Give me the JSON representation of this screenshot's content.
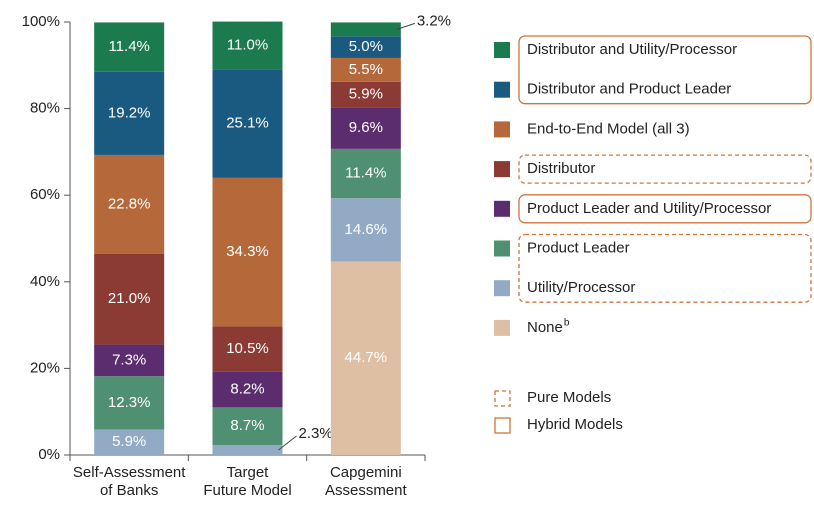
{
  "chart_data": {
    "type": "stacked_bar",
    "categories": [
      "Self-Assessment\nof Banks",
      "Target\nFuture Model",
      "Capgemini\nAssessment"
    ],
    "ylim": [
      0,
      100
    ],
    "yticks": [
      {
        "value": 0,
        "label": "0%"
      },
      {
        "value": 20,
        "label": "20%"
      },
      {
        "value": 40,
        "label": "40%"
      },
      {
        "value": 60,
        "label": "60%"
      },
      {
        "value": 80,
        "label": "80%"
      },
      {
        "value": 100,
        "label": "100%"
      }
    ],
    "series": [
      {
        "name": "Distributor and Utility/Processor",
        "color": "#1b7a4e",
        "model": "Hybrid Models",
        "values": [
          11.4,
          11.0,
          3.2
        ],
        "value_labels": [
          "11.4%",
          "11.0%",
          "3.2%"
        ]
      },
      {
        "name": "Distributor and Product Leader",
        "color": "#1a5a80",
        "model": "Hybrid Models",
        "values": [
          19.2,
          25.1,
          5.0
        ],
        "value_labels": [
          "19.2%",
          "25.1%",
          "5.0%"
        ]
      },
      {
        "name": "End-to-End Model (all 3)",
        "color": "#b5693a",
        "values": [
          22.8,
          34.3,
          5.5
        ],
        "value_labels": [
          "22.8%",
          "34.3%",
          "5.5%"
        ]
      },
      {
        "name": "Distributor",
        "color": "#8b3a34",
        "model": "Pure Models",
        "values": [
          21.0,
          10.5,
          5.9
        ],
        "value_labels": [
          "21.0%",
          "10.5%",
          "5.9%"
        ]
      },
      {
        "name": "Product Leader and Utility/Processor",
        "color": "#5b2d6e",
        "model": "Hybrid Models",
        "values": [
          7.3,
          8.2,
          9.6
        ],
        "value_labels": [
          "7.3%",
          "8.2%",
          "9.6%"
        ]
      },
      {
        "name": "Product Leader",
        "color": "#4f8f72",
        "model": "Pure Models",
        "values": [
          12.3,
          8.7,
          11.4
        ],
        "value_labels": [
          "12.3%",
          "8.7%",
          "11.4%"
        ]
      },
      {
        "name": "Utility/Processor",
        "color": "#93aac4",
        "model": "Pure Models",
        "values": [
          5.9,
          2.3,
          14.6
        ],
        "value_labels": [
          "5.9%",
          "2.3%",
          "14.6%"
        ]
      },
      {
        "name": "None",
        "name_sup": "b",
        "color": "#dfbfa3",
        "values": [
          null,
          null,
          44.7
        ],
        "value_labels": [
          null,
          null,
          "44.7%"
        ]
      }
    ],
    "model_types": [
      {
        "name": "Pure Models",
        "line": "dashed"
      },
      {
        "name": "Hybrid Models",
        "line": "solid"
      }
    ]
  }
}
